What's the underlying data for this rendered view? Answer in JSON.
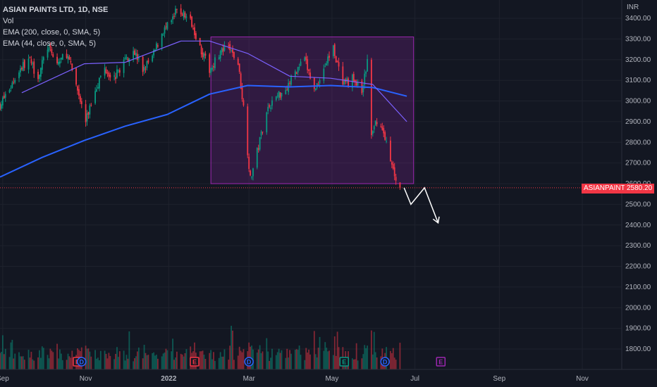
{
  "legend": {
    "title": "ASIAN PAINTS LTD, 1D, NSE",
    "lines": [
      "Vol",
      "EMA (200, close, 0, SMA, 5)",
      "EMA (44, close, 0, SMA, 5)"
    ]
  },
  "currency": "INR",
  "last_price": {
    "symbol": "ASIANPAINT",
    "value": "2580.20"
  },
  "events": [
    {
      "label": "E",
      "date": "2021-10-26",
      "color": "#f23645"
    },
    {
      "label": "D",
      "date": "2021-10-29",
      "color": "#2962ff"
    },
    {
      "label": "E",
      "date": "2022-01-20",
      "color": "#f23645"
    },
    {
      "label": "D",
      "date": "2022-03-01",
      "color": "#2962ff"
    },
    {
      "label": "E",
      "date": "2022-05-10",
      "color": "#089981"
    },
    {
      "label": "D",
      "date": "2022-06-09",
      "color": "#2962ff"
    },
    {
      "label": "E",
      "date": "2022-07-20",
      "color": "#9c27b0"
    }
  ],
  "chart_data": {
    "type": "candlestick",
    "x_start": "2021-08-30",
    "x_end": "2022-11-30",
    "xticks": [
      {
        "label": "Sep",
        "date": "2021-09-01"
      },
      {
        "label": "Nov",
        "date": "2021-11-01"
      },
      {
        "label": "2022",
        "date": "2022-01-01"
      },
      {
        "label": "Mar",
        "date": "2022-03-01"
      },
      {
        "label": "May",
        "date": "2022-05-01"
      },
      {
        "label": "Jul",
        "date": "2022-07-01"
      },
      {
        "label": "Sep",
        "date": "2022-09-01"
      },
      {
        "label": "Nov",
        "date": "2022-11-01"
      }
    ],
    "y_ticks": [
      "3400.00",
      "3300.00",
      "3200.00",
      "3100.00",
      "3000.00",
      "2900.00",
      "2800.00",
      "2700.00",
      "2600.00",
      "2500.00",
      "2400.00",
      "2300.00",
      "2200.00",
      "2100.00",
      "2000.00",
      "1900.00",
      "1800.00"
    ],
    "close_points": [
      [
        "2021-08-30",
        2980
      ],
      [
        "2021-09-06",
        3060
      ],
      [
        "2021-09-13",
        3150
      ],
      [
        "2021-09-20",
        3200
      ],
      [
        "2021-09-27",
        3120
      ],
      [
        "2021-10-04",
        3260
      ],
      [
        "2021-10-11",
        3180
      ],
      [
        "2021-10-18",
        3230
      ],
      [
        "2021-10-25",
        3080
      ],
      [
        "2021-11-01",
        2900
      ],
      [
        "2021-11-08",
        3060
      ],
      [
        "2021-11-15",
        3160
      ],
      [
        "2021-11-22",
        3110
      ],
      [
        "2021-11-29",
        3190
      ],
      [
        "2021-12-06",
        3250
      ],
      [
        "2021-12-13",
        3150
      ],
      [
        "2021-12-20",
        3210
      ],
      [
        "2021-12-27",
        3330
      ],
      [
        "2022-01-03",
        3380
      ],
      [
        "2022-01-07",
        3440
      ],
      [
        "2022-01-12",
        3420
      ],
      [
        "2022-01-18",
        3380
      ],
      [
        "2022-01-24",
        3260
      ],
      [
        "2022-01-31",
        3150
      ],
      [
        "2022-02-07",
        3230
      ],
      [
        "2022-02-14",
        3260
      ],
      [
        "2022-02-21",
        3180
      ],
      [
        "2022-02-25",
        2970
      ],
      [
        "2022-03-02",
        2620
      ],
      [
        "2022-03-08",
        2780
      ],
      [
        "2022-03-14",
        2960
      ],
      [
        "2022-03-21",
        3020
      ],
      [
        "2022-03-28",
        3060
      ],
      [
        "2022-04-04",
        3140
      ],
      [
        "2022-04-11",
        3200
      ],
      [
        "2022-04-18",
        3050
      ],
      [
        "2022-04-25",
        3160
      ],
      [
        "2022-05-02",
        3260
      ],
      [
        "2022-05-09",
        3070
      ],
      [
        "2022-05-16",
        3110
      ],
      [
        "2022-05-23",
        3040
      ],
      [
        "2022-05-27",
        3190
      ],
      [
        "2022-05-30",
        2830
      ],
      [
        "2022-06-03",
        2910
      ],
      [
        "2022-06-09",
        2830
      ],
      [
        "2022-06-13",
        2700
      ],
      [
        "2022-06-20",
        2580
      ]
    ],
    "ema200": [
      [
        "2021-08-30",
        2632
      ],
      [
        "2021-09-30",
        2727
      ],
      [
        "2021-10-31",
        2809
      ],
      [
        "2021-11-30",
        2878
      ],
      [
        "2021-12-31",
        2935
      ],
      [
        "2022-01-31",
        3033
      ],
      [
        "2022-02-28",
        3075
      ],
      [
        "2022-03-31",
        3068
      ],
      [
        "2022-04-30",
        3075
      ],
      [
        "2022-05-31",
        3065
      ],
      [
        "2022-06-25",
        3023
      ]
    ],
    "ema44": [
      [
        "2021-09-15",
        3040
      ],
      [
        "2021-10-31",
        3180
      ],
      [
        "2021-11-30",
        3187
      ],
      [
        "2022-01-10",
        3290
      ],
      [
        "2022-01-31",
        3290
      ],
      [
        "2022-02-28",
        3230
      ],
      [
        "2022-03-31",
        3120
      ],
      [
        "2022-04-30",
        3110
      ],
      [
        "2022-05-31",
        3080
      ],
      [
        "2022-06-25",
        2900
      ]
    ],
    "range_box": {
      "date_start": "2022-02-01",
      "date_end": "2022-06-30",
      "high": 3310,
      "low": 2600
    },
    "projection_arrow": [
      [
        "2022-06-23",
        2580
      ],
      [
        "2022-06-28",
        2500
      ],
      [
        "2022-07-08",
        2580
      ],
      [
        "2022-07-18",
        2410
      ]
    ],
    "volume_ylim": [
      0,
      3700
    ],
    "colors": {
      "up": "#089981",
      "down": "#f23645",
      "ema200": "#2962ff",
      "ema44": "#7b61ff",
      "box": "#9c27b0",
      "last_line": "#f23645"
    }
  }
}
